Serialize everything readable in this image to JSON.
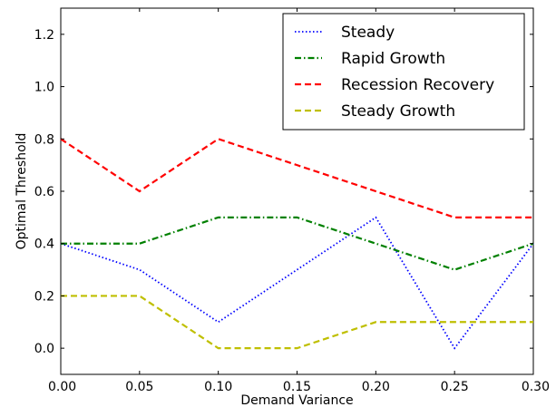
{
  "chart_data": {
    "type": "line",
    "xlabel": "Demand Variance",
    "ylabel": "Optimal Threshold",
    "xlim": [
      0.0,
      0.3
    ],
    "ylim": [
      -0.1,
      1.3
    ],
    "x_ticks": [
      "0.00",
      "0.05",
      "0.10",
      "0.15",
      "0.20",
      "0.25",
      "0.30"
    ],
    "y_ticks": [
      "0.0",
      "0.2",
      "0.4",
      "0.6",
      "0.8",
      "1.0",
      "1.2"
    ],
    "legend_position": "top-right",
    "x": [
      0.0,
      0.05,
      0.1,
      0.15,
      0.2,
      0.25,
      0.3
    ],
    "series": [
      {
        "name": "Steady",
        "color": "#0000ff",
        "style": "dotted",
        "values": [
          0.4,
          0.3,
          0.1,
          0.3,
          0.5,
          0.0,
          0.4
        ]
      },
      {
        "name": "Rapid Growth",
        "color": "#008000",
        "style": "dashdot",
        "values": [
          0.4,
          0.4,
          0.5,
          0.5,
          0.4,
          0.3,
          0.4
        ]
      },
      {
        "name": "Recession Recovery",
        "color": "#ff0000",
        "style": "dashed",
        "values": [
          0.8,
          0.6,
          0.8,
          0.7,
          0.6,
          0.5,
          0.5
        ]
      },
      {
        "name": "Steady Growth",
        "color": "#bfbf00",
        "style": "dashed",
        "values": [
          0.2,
          0.2,
          0.0,
          0.0,
          0.1,
          0.1,
          0.1
        ]
      }
    ]
  }
}
